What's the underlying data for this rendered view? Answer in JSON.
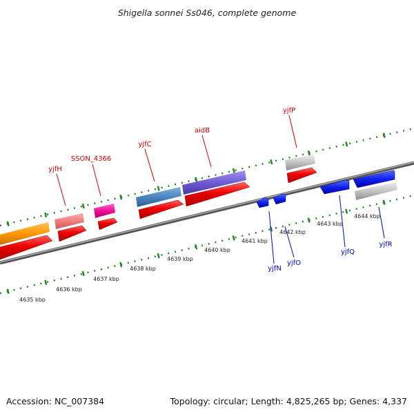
{
  "title": "Shigella sonnei Ss046, complete genome",
  "footer": {
    "accession": "Accession: NC_007384",
    "summary": "Topology: circular; Length: 4,825,265 bp; Genes: 4,337"
  },
  "colors": {
    "forward_label": "#cc0000",
    "reverse_label": "#0000cc",
    "backbone": "#777777",
    "ticks": "#228822"
  },
  "kbp_labels": [
    "4635 kbp",
    "4636 kbp",
    "4637 kbp",
    "4638 kbp",
    "4639 kbp",
    "4640 kbp",
    "4641 kbp",
    "4642 kbp",
    "4643 kbp",
    "4644 kbp"
  ],
  "gene_labels": [
    {
      "name": "yjfH",
      "strand": "forward"
    },
    {
      "name": "SSON_4366",
      "strand": "forward"
    },
    {
      "name": "yjfC",
      "strand": "forward"
    },
    {
      "name": "aidB",
      "strand": "forward"
    },
    {
      "name": "yjfP",
      "strand": "forward"
    },
    {
      "name": "yjfN",
      "strand": "reverse"
    },
    {
      "name": "yjfO",
      "strand": "reverse"
    },
    {
      "name": "yjfQ",
      "strand": "reverse"
    },
    {
      "name": "yjfR",
      "strand": "reverse"
    }
  ]
}
